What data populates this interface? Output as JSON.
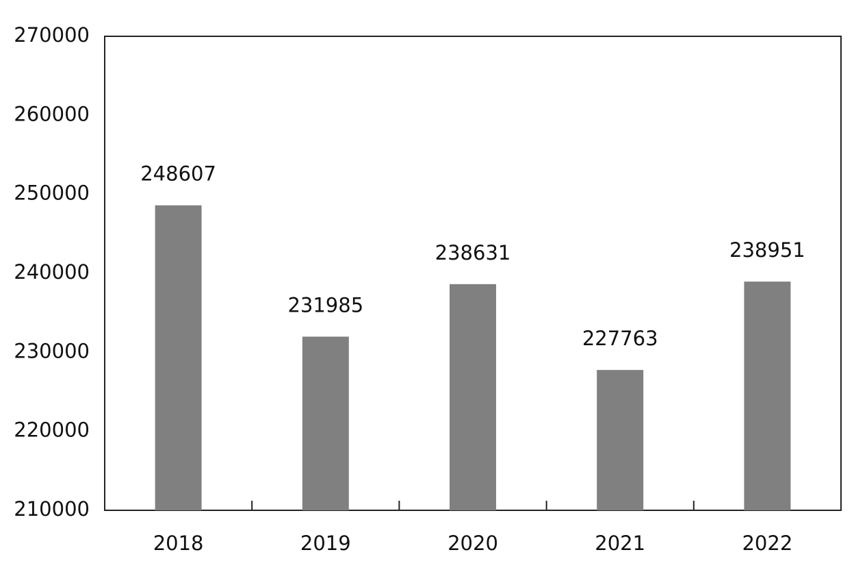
{
  "chart_data": {
    "type": "bar",
    "categories": [
      "2018",
      "2019",
      "2020",
      "2021",
      "2022"
    ],
    "values": [
      248607,
      231985,
      238631,
      227763,
      238951
    ],
    "color": "#808080",
    "ylim": [
      210000,
      270000
    ],
    "yticks": [
      210000,
      220000,
      230000,
      240000,
      250000,
      260000,
      270000
    ],
    "grid": false
  }
}
